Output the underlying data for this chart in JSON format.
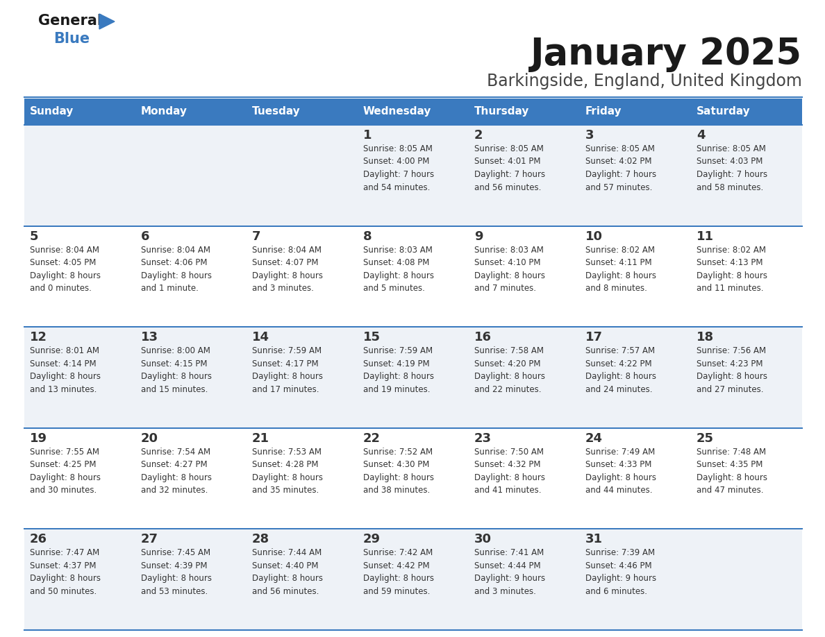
{
  "title": "January 2025",
  "subtitle": "Barkingside, England, United Kingdom",
  "header_color": "#3a7abf",
  "header_text_color": "#ffffff",
  "cell_bg_even": "#eef2f7",
  "cell_bg_odd": "#ffffff",
  "border_color": "#3a7abf",
  "text_color": "#333333",
  "days_of_week": [
    "Sunday",
    "Monday",
    "Tuesday",
    "Wednesday",
    "Thursday",
    "Friday",
    "Saturday"
  ],
  "calendar_data": [
    [
      {
        "day": "",
        "info": ""
      },
      {
        "day": "",
        "info": ""
      },
      {
        "day": "",
        "info": ""
      },
      {
        "day": "1",
        "info": "Sunrise: 8:05 AM\nSunset: 4:00 PM\nDaylight: 7 hours\nand 54 minutes."
      },
      {
        "day": "2",
        "info": "Sunrise: 8:05 AM\nSunset: 4:01 PM\nDaylight: 7 hours\nand 56 minutes."
      },
      {
        "day": "3",
        "info": "Sunrise: 8:05 AM\nSunset: 4:02 PM\nDaylight: 7 hours\nand 57 minutes."
      },
      {
        "day": "4",
        "info": "Sunrise: 8:05 AM\nSunset: 4:03 PM\nDaylight: 7 hours\nand 58 minutes."
      }
    ],
    [
      {
        "day": "5",
        "info": "Sunrise: 8:04 AM\nSunset: 4:05 PM\nDaylight: 8 hours\nand 0 minutes."
      },
      {
        "day": "6",
        "info": "Sunrise: 8:04 AM\nSunset: 4:06 PM\nDaylight: 8 hours\nand 1 minute."
      },
      {
        "day": "7",
        "info": "Sunrise: 8:04 AM\nSunset: 4:07 PM\nDaylight: 8 hours\nand 3 minutes."
      },
      {
        "day": "8",
        "info": "Sunrise: 8:03 AM\nSunset: 4:08 PM\nDaylight: 8 hours\nand 5 minutes."
      },
      {
        "day": "9",
        "info": "Sunrise: 8:03 AM\nSunset: 4:10 PM\nDaylight: 8 hours\nand 7 minutes."
      },
      {
        "day": "10",
        "info": "Sunrise: 8:02 AM\nSunset: 4:11 PM\nDaylight: 8 hours\nand 8 minutes."
      },
      {
        "day": "11",
        "info": "Sunrise: 8:02 AM\nSunset: 4:13 PM\nDaylight: 8 hours\nand 11 minutes."
      }
    ],
    [
      {
        "day": "12",
        "info": "Sunrise: 8:01 AM\nSunset: 4:14 PM\nDaylight: 8 hours\nand 13 minutes."
      },
      {
        "day": "13",
        "info": "Sunrise: 8:00 AM\nSunset: 4:15 PM\nDaylight: 8 hours\nand 15 minutes."
      },
      {
        "day": "14",
        "info": "Sunrise: 7:59 AM\nSunset: 4:17 PM\nDaylight: 8 hours\nand 17 minutes."
      },
      {
        "day": "15",
        "info": "Sunrise: 7:59 AM\nSunset: 4:19 PM\nDaylight: 8 hours\nand 19 minutes."
      },
      {
        "day": "16",
        "info": "Sunrise: 7:58 AM\nSunset: 4:20 PM\nDaylight: 8 hours\nand 22 minutes."
      },
      {
        "day": "17",
        "info": "Sunrise: 7:57 AM\nSunset: 4:22 PM\nDaylight: 8 hours\nand 24 minutes."
      },
      {
        "day": "18",
        "info": "Sunrise: 7:56 AM\nSunset: 4:23 PM\nDaylight: 8 hours\nand 27 minutes."
      }
    ],
    [
      {
        "day": "19",
        "info": "Sunrise: 7:55 AM\nSunset: 4:25 PM\nDaylight: 8 hours\nand 30 minutes."
      },
      {
        "day": "20",
        "info": "Sunrise: 7:54 AM\nSunset: 4:27 PM\nDaylight: 8 hours\nand 32 minutes."
      },
      {
        "day": "21",
        "info": "Sunrise: 7:53 AM\nSunset: 4:28 PM\nDaylight: 8 hours\nand 35 minutes."
      },
      {
        "day": "22",
        "info": "Sunrise: 7:52 AM\nSunset: 4:30 PM\nDaylight: 8 hours\nand 38 minutes."
      },
      {
        "day": "23",
        "info": "Sunrise: 7:50 AM\nSunset: 4:32 PM\nDaylight: 8 hours\nand 41 minutes."
      },
      {
        "day": "24",
        "info": "Sunrise: 7:49 AM\nSunset: 4:33 PM\nDaylight: 8 hours\nand 44 minutes."
      },
      {
        "day": "25",
        "info": "Sunrise: 7:48 AM\nSunset: 4:35 PM\nDaylight: 8 hours\nand 47 minutes."
      }
    ],
    [
      {
        "day": "26",
        "info": "Sunrise: 7:47 AM\nSunset: 4:37 PM\nDaylight: 8 hours\nand 50 minutes."
      },
      {
        "day": "27",
        "info": "Sunrise: 7:45 AM\nSunset: 4:39 PM\nDaylight: 8 hours\nand 53 minutes."
      },
      {
        "day": "28",
        "info": "Sunrise: 7:44 AM\nSunset: 4:40 PM\nDaylight: 8 hours\nand 56 minutes."
      },
      {
        "day": "29",
        "info": "Sunrise: 7:42 AM\nSunset: 4:42 PM\nDaylight: 8 hours\nand 59 minutes."
      },
      {
        "day": "30",
        "info": "Sunrise: 7:41 AM\nSunset: 4:44 PM\nDaylight: 9 hours\nand 3 minutes."
      },
      {
        "day": "31",
        "info": "Sunrise: 7:39 AM\nSunset: 4:46 PM\nDaylight: 9 hours\nand 6 minutes."
      },
      {
        "day": "",
        "info": ""
      }
    ]
  ],
  "logo_color_general": "#1a1a1a",
  "logo_color_blue": "#3a7abf",
  "logo_triangle_color": "#3a7abf",
  "title_fontsize": 38,
  "subtitle_fontsize": 17,
  "header_fontsize": 11,
  "day_num_fontsize": 13,
  "info_fontsize": 8.5
}
